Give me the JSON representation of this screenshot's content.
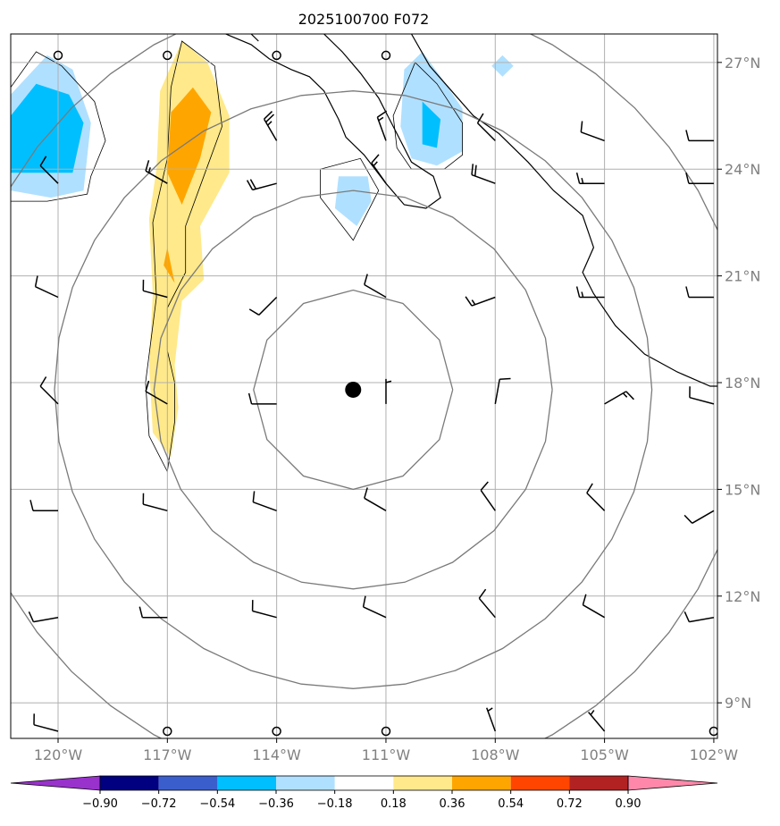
{
  "chart_data": {
    "type": "map-contour",
    "title": "2025100700 F072",
    "xlim": [
      -121.3,
      -101.9
    ],
    "ylim": [
      8.0,
      27.8
    ],
    "x_ticks": [
      -120,
      -117,
      -114,
      -111,
      -108,
      -105,
      -102
    ],
    "x_tick_labels": [
      "120°W",
      "117°W",
      "114°W",
      "111°W",
      "108°W",
      "105°W",
      "102°W"
    ],
    "y_ticks": [
      9,
      12,
      15,
      18,
      21,
      24,
      27
    ],
    "y_tick_labels": [
      "9°N",
      "12°N",
      "15°N",
      "18°N",
      "21°N",
      "24°N",
      "27°N"
    ],
    "grid": true,
    "storm_center": {
      "lon": -111.9,
      "lat": 17.8
    },
    "range_rings_deg": [
      2.8,
      5.6,
      8.4,
      11.2
    ],
    "colorbar": {
      "levels": [
        -0.9,
        -0.72,
        -0.54,
        -0.36,
        -0.18,
        0.18,
        0.36,
        0.54,
        0.72,
        0.9
      ],
      "tick_labels": [
        "−0.90",
        "−0.72",
        "−0.54",
        "−0.36",
        "−0.18",
        "0.18",
        "0.36",
        "0.54",
        "0.72",
        "0.90"
      ],
      "under_color": "#9932cc",
      "over_color": "#ff88aa",
      "colors": [
        "#000080",
        "#3a5fcd",
        "#00bfff",
        "#b0e0ff",
        "#ffffff",
        "#ffe98a",
        "#ffa500",
        "#ff4500",
        "#b22222"
      ]
    },
    "filled_regions": [
      {
        "name": "west-low",
        "level": -0.36,
        "pts": [
          [
            -121.3,
            23.4
          ],
          [
            -121.3,
            26.1
          ],
          [
            -120.3,
            27.2
          ],
          [
            -119.6,
            26.8
          ],
          [
            -119.1,
            25.3
          ],
          [
            -119.3,
            23.4
          ],
          [
            -120.2,
            23.2
          ]
        ]
      },
      {
        "name": "west-low",
        "level": -0.54,
        "pts": [
          [
            -121.3,
            23.9
          ],
          [
            -121.3,
            25.5
          ],
          [
            -120.6,
            26.4
          ],
          [
            -119.7,
            26.1
          ],
          [
            -119.3,
            25.3
          ],
          [
            -119.6,
            23.9
          ]
        ]
      },
      {
        "name": "baja-tip",
        "level": -0.36,
        "pts": [
          [
            -112.3,
            23.8
          ],
          [
            -111.5,
            23.8
          ],
          [
            -111.4,
            23.1
          ],
          [
            -111.8,
            22.4
          ],
          [
            -112.4,
            22.9
          ]
        ]
      },
      {
        "name": "gulf-low",
        "level": -0.36,
        "pts": [
          [
            -110.5,
            26.8
          ],
          [
            -110.0,
            27.3
          ],
          [
            -109.5,
            26.6
          ],
          [
            -108.9,
            25.7
          ],
          [
            -108.9,
            24.5
          ],
          [
            -109.6,
            24.1
          ],
          [
            -110.3,
            24.3
          ],
          [
            -110.6,
            25.2
          ]
        ]
      },
      {
        "name": "gulf-low",
        "level": -0.54,
        "pts": [
          [
            -110.0,
            25.9
          ],
          [
            -109.5,
            25.4
          ],
          [
            -109.6,
            24.6
          ],
          [
            -110.0,
            24.7
          ]
        ]
      },
      {
        "name": "gulf-low",
        "level": -0.36,
        "pts": [
          [
            -107.8,
            27.2
          ],
          [
            -107.5,
            26.9
          ],
          [
            -107.8,
            26.6
          ],
          [
            -108.1,
            26.9
          ]
        ]
      },
      {
        "name": "band-high",
        "level": 0.18,
        "pts": [
          [
            -116.6,
            27.6
          ],
          [
            -115.9,
            27.0
          ],
          [
            -115.3,
            25.5
          ],
          [
            -115.3,
            23.9
          ],
          [
            -116.1,
            22.4
          ],
          [
            -116.0,
            20.9
          ],
          [
            -116.6,
            20.3
          ],
          [
            -116.8,
            18.5
          ],
          [
            -116.7,
            17.3
          ],
          [
            -116.9,
            15.9
          ],
          [
            -117.4,
            16.6
          ],
          [
            -117.5,
            18.5
          ],
          [
            -117.4,
            20.5
          ],
          [
            -117.5,
            22.6
          ],
          [
            -117.3,
            24.0
          ],
          [
            -117.2,
            26.2
          ]
        ]
      },
      {
        "name": "band-high",
        "level": 0.36,
        "pts": [
          [
            -116.3,
            26.3
          ],
          [
            -115.8,
            25.6
          ],
          [
            -116.1,
            24.3
          ],
          [
            -116.6,
            23.0
          ],
          [
            -117.0,
            23.9
          ],
          [
            -116.9,
            25.6
          ]
        ]
      },
      {
        "name": "band-high",
        "level": 0.36,
        "pts": [
          [
            -117.0,
            21.8
          ],
          [
            -116.8,
            20.8
          ],
          [
            -117.1,
            21.3
          ]
        ]
      }
    ],
    "wind_barbs": [
      {
        "lon": -120,
        "lat": 27.2,
        "dir": 0,
        "kt": 0
      },
      {
        "lon": -117,
        "lat": 27.2,
        "dir": 0,
        "kt": 0
      },
      {
        "lon": -114,
        "lat": 27.2,
        "dir": 0,
        "kt": 0
      },
      {
        "lon": -111,
        "lat": 27.2,
        "dir": 0,
        "kt": 0
      },
      {
        "lon": -114,
        "lat": 24.8,
        "dir": 330,
        "kt": 25
      },
      {
        "lon": -111,
        "lat": 24.8,
        "dir": 340,
        "kt": 15
      },
      {
        "lon": -108,
        "lat": 24.8,
        "dir": 315,
        "kt": 10
      },
      {
        "lon": -105,
        "lat": 24.8,
        "dir": 290,
        "kt": 10
      },
      {
        "lon": -102,
        "lat": 24.8,
        "dir": 270,
        "kt": 10
      },
      {
        "lon": -120,
        "lat": 23.6,
        "dir": 315,
        "kt": 10
      },
      {
        "lon": -117,
        "lat": 23.6,
        "dir": 300,
        "kt": 15
      },
      {
        "lon": -114,
        "lat": 23.6,
        "dir": 255,
        "kt": 20
      },
      {
        "lon": -111,
        "lat": 23.6,
        "dir": 325,
        "kt": 15
      },
      {
        "lon": -108,
        "lat": 23.6,
        "dir": 290,
        "kt": 20
      },
      {
        "lon": -105,
        "lat": 23.6,
        "dir": 270,
        "kt": 15
      },
      {
        "lon": -102,
        "lat": 23.6,
        "dir": 270,
        "kt": 10
      },
      {
        "lon": -120,
        "lat": 20.4,
        "dir": 295,
        "kt": 10
      },
      {
        "lon": -117,
        "lat": 20.4,
        "dir": 285,
        "kt": 10
      },
      {
        "lon": -114,
        "lat": 20.4,
        "dir": 225,
        "kt": 10
      },
      {
        "lon": -111,
        "lat": 20.4,
        "dir": 300,
        "kt": 10
      },
      {
        "lon": -108,
        "lat": 20.4,
        "dir": 250,
        "kt": 15
      },
      {
        "lon": -105,
        "lat": 20.4,
        "dir": 270,
        "kt": 15
      },
      {
        "lon": -102,
        "lat": 20.4,
        "dir": 270,
        "kt": 10
      },
      {
        "lon": -120,
        "lat": 17.4,
        "dir": 315,
        "kt": 10
      },
      {
        "lon": -117,
        "lat": 17.4,
        "dir": 300,
        "kt": 10
      },
      {
        "lon": -114,
        "lat": 17.4,
        "dir": 270,
        "kt": 10
      },
      {
        "lon": -111,
        "lat": 17.4,
        "dir": 0,
        "kt": 5
      },
      {
        "lon": -108,
        "lat": 17.4,
        "dir": 10,
        "kt": 10
      },
      {
        "lon": -105,
        "lat": 17.4,
        "dir": 60,
        "kt": 15
      },
      {
        "lon": -102,
        "lat": 17.4,
        "dir": 285,
        "kt": 10
      },
      {
        "lon": -120,
        "lat": 14.4,
        "dir": 270,
        "kt": 10
      },
      {
        "lon": -117,
        "lat": 14.4,
        "dir": 285,
        "kt": 10
      },
      {
        "lon": -114,
        "lat": 14.4,
        "dir": 290,
        "kt": 10
      },
      {
        "lon": -111,
        "lat": 14.4,
        "dir": 300,
        "kt": 10
      },
      {
        "lon": -108,
        "lat": 14.4,
        "dir": 325,
        "kt": 10
      },
      {
        "lon": -105,
        "lat": 14.4,
        "dir": 315,
        "kt": 10
      },
      {
        "lon": -102,
        "lat": 14.4,
        "dir": 240,
        "kt": 10
      },
      {
        "lon": -120,
        "lat": 11.4,
        "dir": 260,
        "kt": 10
      },
      {
        "lon": -117,
        "lat": 11.4,
        "dir": 270,
        "kt": 10
      },
      {
        "lon": -114,
        "lat": 11.4,
        "dir": 285,
        "kt": 10
      },
      {
        "lon": -111,
        "lat": 11.4,
        "dir": 295,
        "kt": 10
      },
      {
        "lon": -108,
        "lat": 11.4,
        "dir": 320,
        "kt": 10
      },
      {
        "lon": -105,
        "lat": 11.4,
        "dir": 300,
        "kt": 10
      },
      {
        "lon": -102,
        "lat": 11.4,
        "dir": 260,
        "kt": 10
      },
      {
        "lon": -120,
        "lat": 8.2,
        "dir": 285,
        "kt": 10
      },
      {
        "lon": -117,
        "lat": 8.2,
        "dir": 0,
        "kt": 0
      },
      {
        "lon": -114,
        "lat": 8.2,
        "dir": 0,
        "kt": 0
      },
      {
        "lon": -111,
        "lat": 8.2,
        "dir": 0,
        "kt": 0
      },
      {
        "lon": -108,
        "lat": 8.2,
        "dir": 340,
        "kt": 5
      },
      {
        "lon": -105,
        "lat": 8.2,
        "dir": 320,
        "kt": 5
      },
      {
        "lon": -102,
        "lat": 8.2,
        "dir": 0,
        "kt": 0
      }
    ]
  }
}
